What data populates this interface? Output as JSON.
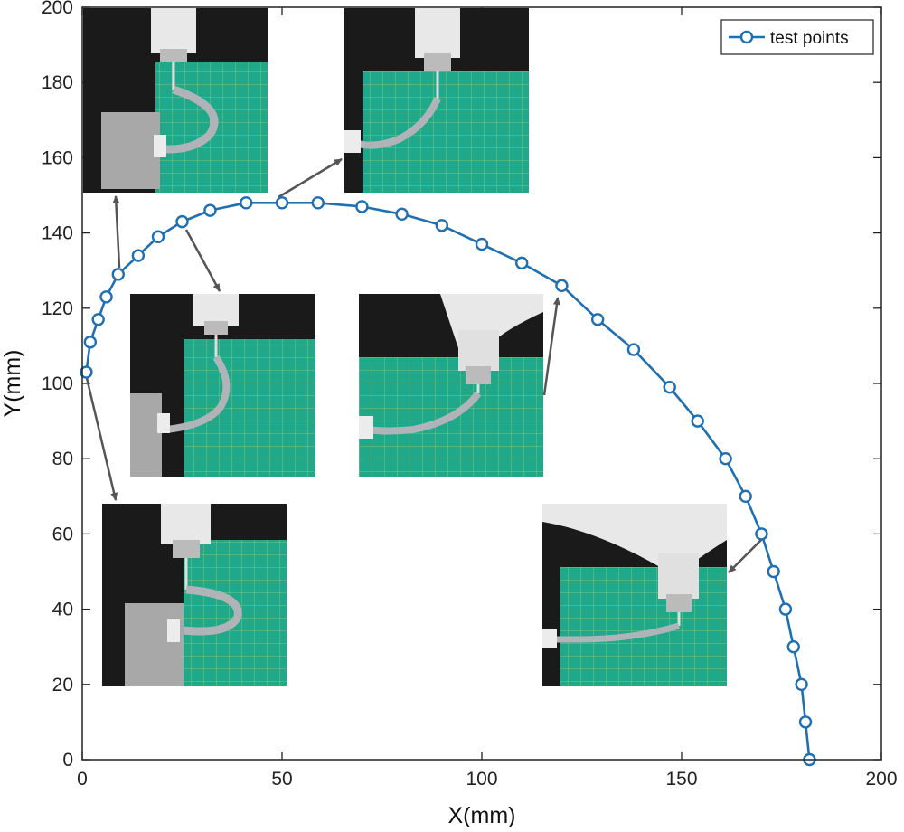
{
  "chart_data": {
    "type": "line",
    "xlabel": "X(mm)",
    "ylabel": "Y(mm)",
    "xlim": [
      0,
      200
    ],
    "ylim": [
      0,
      200
    ],
    "xticks": [
      0,
      50,
      100,
      150,
      200
    ],
    "yticks": [
      0,
      20,
      40,
      60,
      80,
      100,
      120,
      140,
      160,
      180,
      200
    ],
    "grid": false,
    "legend_position": "top-right",
    "series": [
      {
        "name": "test points",
        "color": "#1f6fb2",
        "marker": "open-circle",
        "points": [
          [
            182,
            0
          ],
          [
            181,
            10
          ],
          [
            180,
            20
          ],
          [
            178,
            30
          ],
          [
            176,
            40
          ],
          [
            173,
            50
          ],
          [
            170,
            60
          ],
          [
            166,
            70
          ],
          [
            161,
            80
          ],
          [
            154,
            90
          ],
          [
            147,
            99
          ],
          [
            138,
            109
          ],
          [
            129,
            117
          ],
          [
            120,
            126
          ],
          [
            110,
            132
          ],
          [
            100,
            137
          ],
          [
            90,
            142
          ],
          [
            80,
            145
          ],
          [
            70,
            147
          ],
          [
            59,
            148
          ],
          [
            50,
            148
          ],
          [
            41,
            148
          ],
          [
            32,
            146
          ],
          [
            25,
            143
          ],
          [
            19,
            139
          ],
          [
            14,
            134
          ],
          [
            9,
            129
          ],
          [
            6,
            123
          ],
          [
            4,
            117
          ],
          [
            2,
            111
          ],
          [
            1,
            103
          ]
        ]
      }
    ]
  },
  "photos": [
    {
      "name": "photo-top-left"
    },
    {
      "name": "photo-top-center"
    },
    {
      "name": "photo-middle-left"
    },
    {
      "name": "photo-middle-center"
    },
    {
      "name": "photo-bottom-left"
    },
    {
      "name": "photo-bottom-right"
    }
  ]
}
